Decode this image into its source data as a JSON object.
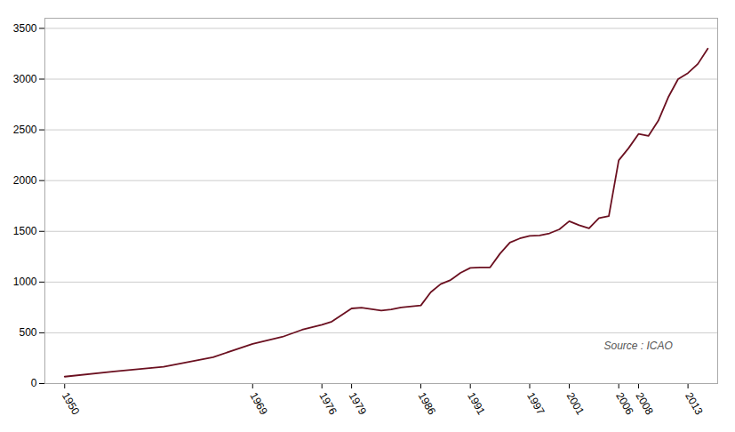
{
  "chart_data": {
    "type": "line",
    "x": [
      1950,
      1955,
      1960,
      1965,
      1969,
      1972,
      1974,
      1976,
      1977,
      1979,
      1980,
      1982,
      1983,
      1984,
      1986,
      1987,
      1988,
      1989,
      1990,
      1991,
      1992,
      1993,
      1994,
      1995,
      1996,
      1997,
      1998,
      1999,
      2000,
      2001,
      2002,
      2003,
      2004,
      2005,
      2006,
      2007,
      2008,
      2009,
      2010,
      2011,
      2012,
      2013,
      2014,
      2015
    ],
    "values": [
      68,
      120,
      165,
      260,
      390,
      460,
      530,
      580,
      610,
      740,
      748,
      720,
      730,
      750,
      770,
      900,
      980,
      1020,
      1090,
      1140,
      1145,
      1145,
      1280,
      1390,
      1430,
      1455,
      1460,
      1480,
      1520,
      1600,
      1560,
      1530,
      1630,
      1650,
      2200,
      2320,
      2460,
      2440,
      2590,
      2820,
      3000,
      3060,
      3150,
      3300
    ],
    "color": "#6B1020",
    "xlim": [
      1948,
      2016
    ],
    "xticks": [
      1950,
      1969,
      1976,
      1979,
      1986,
      1991,
      1997,
      2001,
      2006,
      2008,
      2013
    ],
    "ylim": [
      0,
      3600
    ],
    "yticks": [
      0,
      500,
      1000,
      1500,
      2000,
      2500,
      3000,
      3500
    ],
    "grid": "y",
    "annotations": [
      {
        "text": "Source : ICAO",
        "x": 2004.5,
        "y": 370
      }
    ]
  }
}
